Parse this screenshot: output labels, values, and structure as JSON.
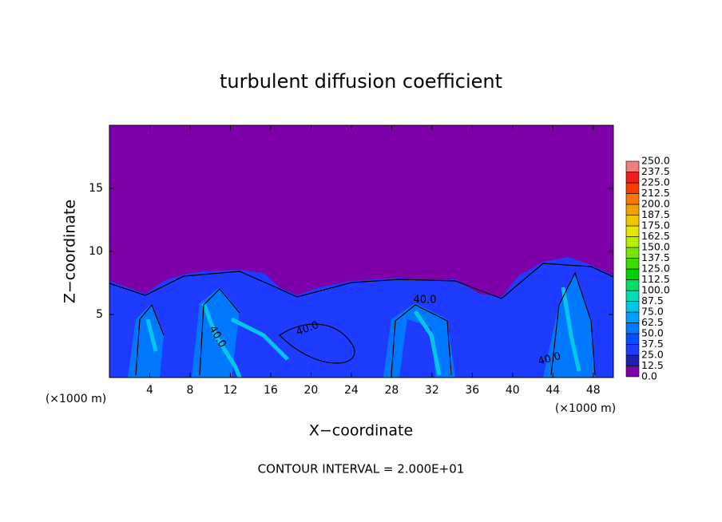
{
  "chart_data": {
    "type": "contour",
    "title": "turbulent diffusion coefficient",
    "x_label": "X−coordinate",
    "y_label": "Z−coordinate",
    "x_unit_labels": [
      "(×1000 m)",
      "(×1000 m)"
    ],
    "footer": "CONTOUR INTERVAL = 2.000E+01",
    "contour_labels": [
      "40.0",
      "40.0",
      "40.0",
      "40.0"
    ],
    "xlim": [
      0,
      50
    ],
    "ylim": [
      0,
      20
    ],
    "xticks": [
      4,
      8,
      12,
      16,
      20,
      24,
      28,
      32,
      36,
      40,
      44,
      48
    ],
    "yticks": [
      5,
      10,
      15
    ],
    "colorbar": {
      "levels": [
        {
          "value": 0,
          "label": "0.0"
        },
        {
          "value": 12.5,
          "label": "12.5"
        },
        {
          "value": 25,
          "label": "25.0"
        },
        {
          "value": 37.5,
          "label": "37.5"
        },
        {
          "value": 50,
          "label": "50.0"
        },
        {
          "value": 62.5,
          "label": "62.5"
        },
        {
          "value": 75,
          "label": "75.0"
        },
        {
          "value": 87.5,
          "label": "87.5"
        },
        {
          "value": 100,
          "label": "100.0"
        },
        {
          "value": 112.5,
          "label": "112.5"
        },
        {
          "value": 125,
          "label": "125.0"
        },
        {
          "value": 137.5,
          "label": "137.5"
        },
        {
          "value": 150,
          "label": "150.0"
        },
        {
          "value": 162.5,
          "label": "162.5"
        },
        {
          "value": 175,
          "label": "175.0"
        },
        {
          "value": 187.5,
          "label": "187.5"
        },
        {
          "value": 200,
          "label": "200.0"
        },
        {
          "value": 212.5,
          "label": "212.5"
        },
        {
          "value": 225,
          "label": "225.0"
        },
        {
          "value": 237.5,
          "label": "237.5"
        },
        {
          "value": 250,
          "label": "250.0"
        }
      ],
      "colors": [
        "#7e00a8",
        "#1e1eb4",
        "#1e3cff",
        "#0050ff",
        "#0078ff",
        "#00a0ff",
        "#00c8e6",
        "#00dcb4",
        "#00dc64",
        "#00d200",
        "#3cdc00",
        "#78e600",
        "#b4f000",
        "#e6e600",
        "#f0c800",
        "#f0a000",
        "#fa7800",
        "#fa3c00",
        "#f01e1e",
        "#f08080"
      ]
    }
  }
}
